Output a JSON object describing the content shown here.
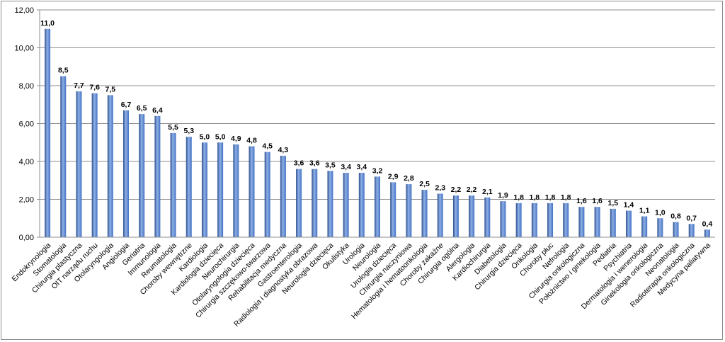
{
  "chart_data": {
    "type": "bar",
    "categories": [
      "Endokrynologia",
      "Stomatologia",
      "Chirurgia plastyczna",
      "OIT narządu ruchu",
      "Otolaryngologia",
      "Angiologia",
      "Geriatria",
      "Immunologia",
      "Reumatologia",
      "Choroby wewnętrzne",
      "Kardiologia",
      "Kardiologia dziecięca",
      "Neurochirurgia",
      "Otolaryngologia dziecięca",
      "Chirurgia szczękowo-twarzowa",
      "Rehabilitacja medyczna",
      "Gastroenterologia",
      "Radiologia i diagnostyka obrazowa",
      "Neurologia dziecięca",
      "Okulistyka",
      "Urologia",
      "Neurologia",
      "Urologia dziecięca",
      "Chirurgia naczyniowa",
      "Hematologia i hematoonkologia",
      "Choroby zakaźne",
      "Chirurgia ogólna",
      "Alergologia",
      "Kardiochirurgia",
      "Diabetologia",
      "Chirurgia dziecięca",
      "Onkologia",
      "Choroby płuc",
      "Nefrologia",
      "Chirurgia onkologiczna",
      "Położnictwo i ginekologia",
      "Pediatria",
      "Psychiatria",
      "Dermatologia i wenerologia",
      "Ginekologia onkologiczna",
      "Neonatologia",
      "Radioterapia onkologiczna",
      "Medycyna paliatywna"
    ],
    "values": [
      11.0,
      8.5,
      7.7,
      7.6,
      7.5,
      6.7,
      6.5,
      6.4,
      5.5,
      5.3,
      5.0,
      5.0,
      4.9,
      4.8,
      4.5,
      4.3,
      3.6,
      3.6,
      3.5,
      3.4,
      3.4,
      3.2,
      2.9,
      2.8,
      2.5,
      2.3,
      2.2,
      2.2,
      2.1,
      1.9,
      1.8,
      1.8,
      1.8,
      1.8,
      1.6,
      1.6,
      1.5,
      1.4,
      1.1,
      1.0,
      0.8,
      0.7,
      0.4
    ],
    "data_labels": [
      "11,0",
      "8,5",
      "7,7",
      "7,6",
      "7,5",
      "6,7",
      "6,5",
      "6,4",
      "5,5",
      "5,3",
      "5,0",
      "5,0",
      "4,9",
      "4,8",
      "4,5",
      "4,3",
      "3,6",
      "3,6",
      "3,5",
      "3,4",
      "3,4",
      "3,2",
      "2,9",
      "2,8",
      "2,5",
      "2,3",
      "2,2",
      "2,2",
      "2,1",
      "1,9",
      "1,8",
      "1,8",
      "1,8",
      "1,8",
      "1,6",
      "1,6",
      "1,5",
      "1,4",
      "1,1",
      "1,0",
      "0,8",
      "0,7",
      "0,4"
    ],
    "yticks": [
      0,
      2,
      4,
      6,
      8,
      10,
      12
    ],
    "ytick_labels": [
      "0,00",
      "2,00",
      "4,00",
      "6,00",
      "8,00",
      "10,00",
      "12,00"
    ],
    "ylim": [
      0,
      12
    ],
    "grid": true,
    "title": "",
    "xlabel": "",
    "ylabel": "",
    "colors": {
      "bar": "#4472c4",
      "bar_dark": "#2c4f8f",
      "bar_light": "#8fb0e6",
      "grid": "#8c8c8c"
    }
  }
}
